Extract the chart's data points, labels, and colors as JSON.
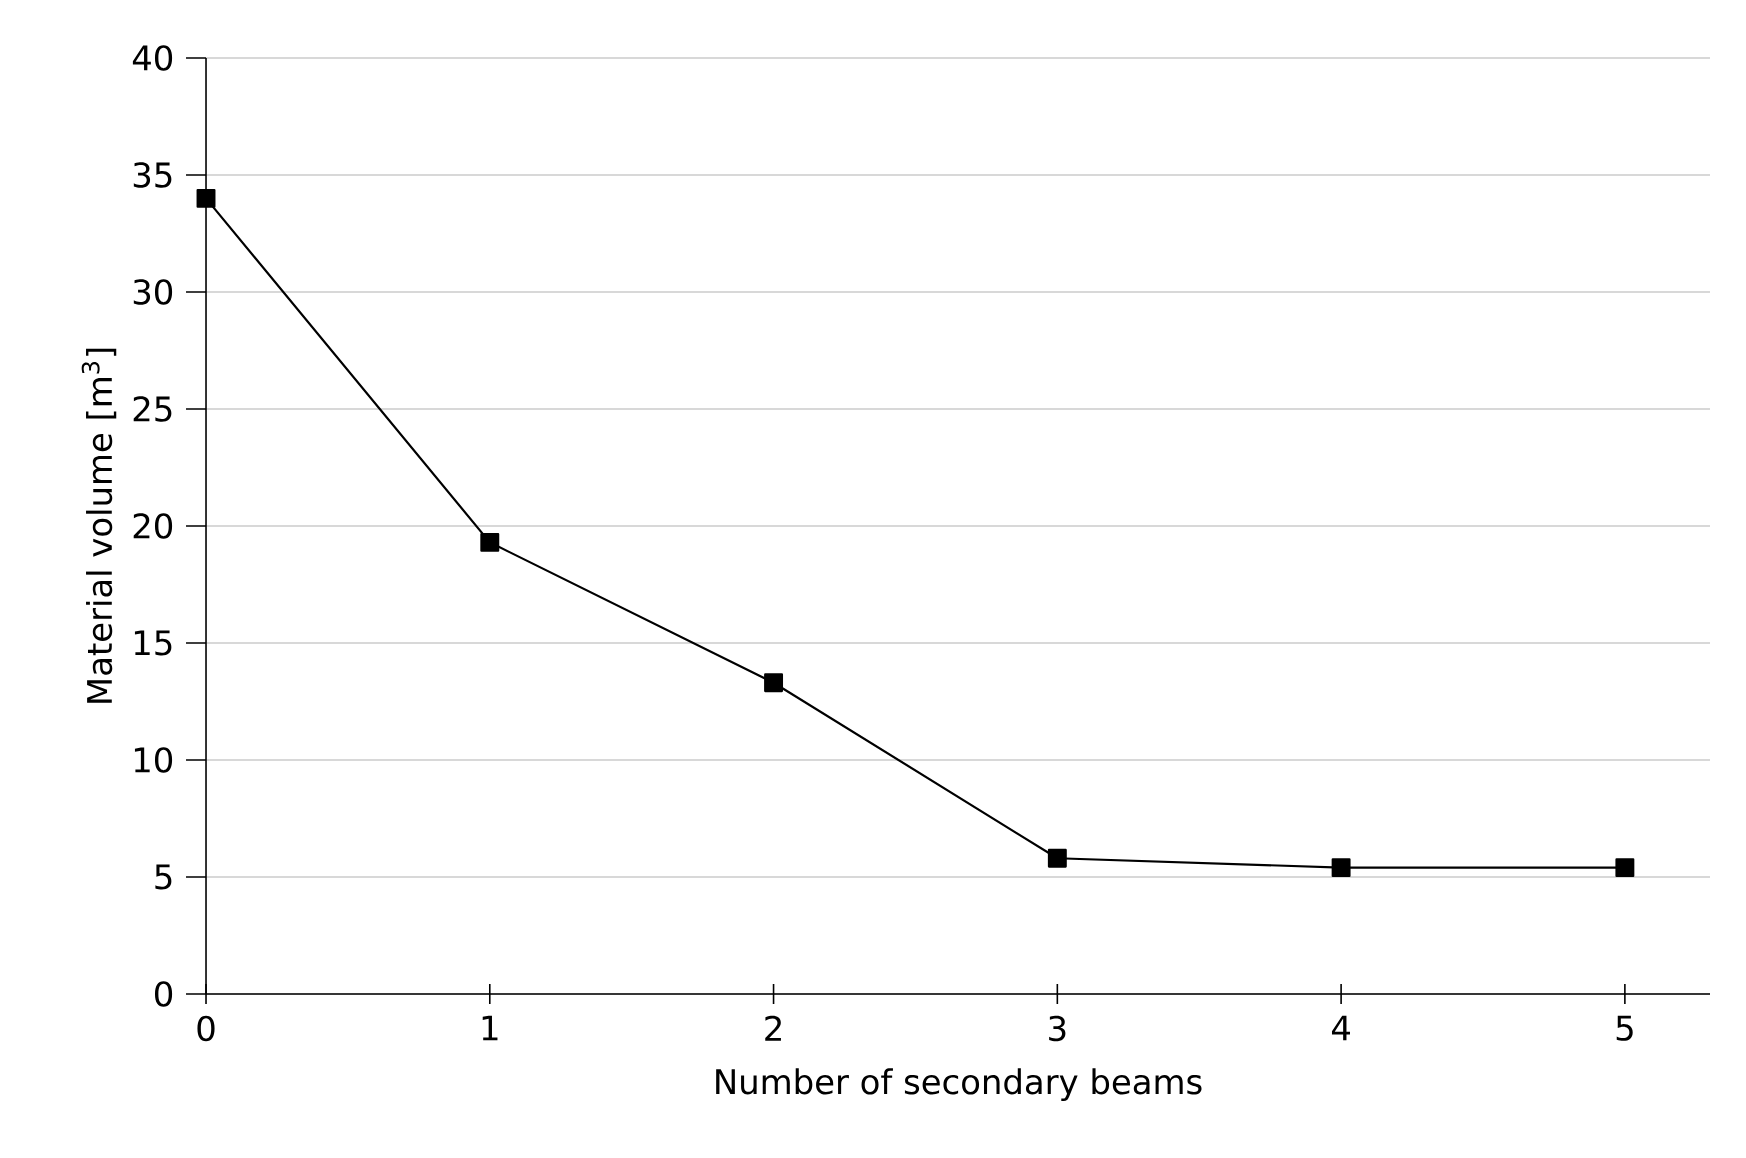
{
  "chart_data": {
    "type": "line",
    "xlabel": "Number of secondary beams",
    "ylabel": "Material volume [m$^{3}$]",
    "x": [
      0,
      1,
      2,
      3,
      4,
      5
    ],
    "series": [
      {
        "color": "#000000",
        "values": [
          34,
          19.3,
          13.3,
          5.8,
          5.4,
          5.4
        ]
      }
    ],
    "xlim": [
      0,
      5.3
    ],
    "xticks": [
      0,
      1,
      2,
      3,
      4,
      5
    ],
    "ylim": [
      0,
      40
    ],
    "yticks": [
      0,
      5,
      10,
      15,
      20,
      25,
      30,
      35,
      40
    ],
    "grid": "y",
    "marker": "square",
    "line_style": "solid"
  }
}
